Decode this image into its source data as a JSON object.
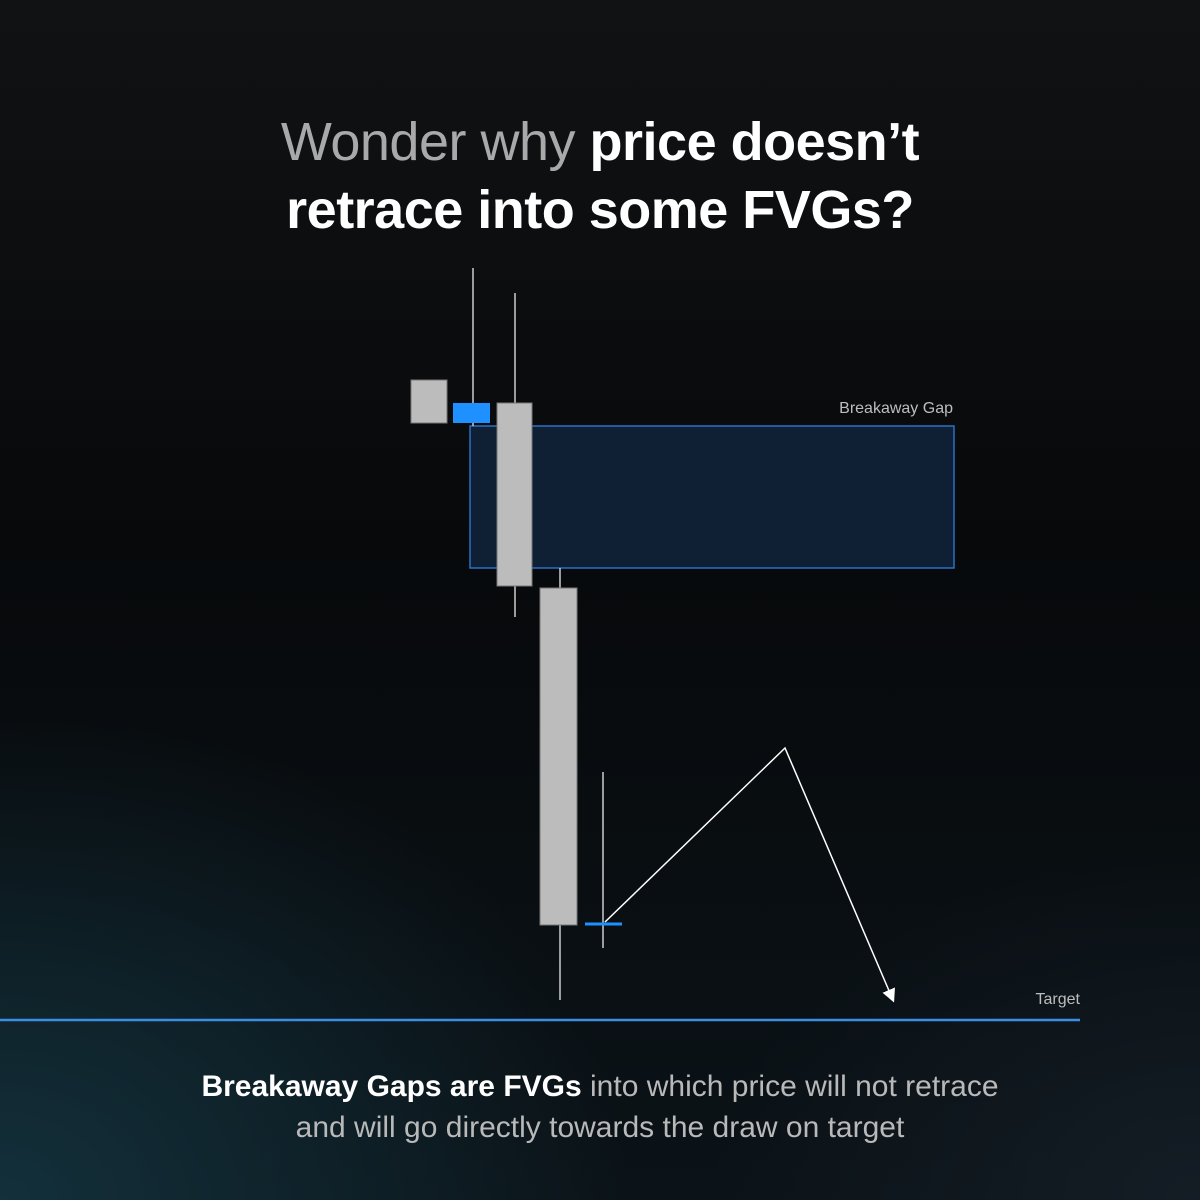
{
  "title": {
    "lead": "Wonder why",
    "emphasis_line1": "price doesn’t",
    "emphasis_line2": "retrace into some FVGs?"
  },
  "labels": {
    "gap": "Breakaway Gap",
    "target": "Target"
  },
  "caption": {
    "emphasis": "Breakaway Gaps are FVGs",
    "rest_line1": "into which price will not retrace",
    "line2": "and will go directly towards the draw on target"
  }
}
